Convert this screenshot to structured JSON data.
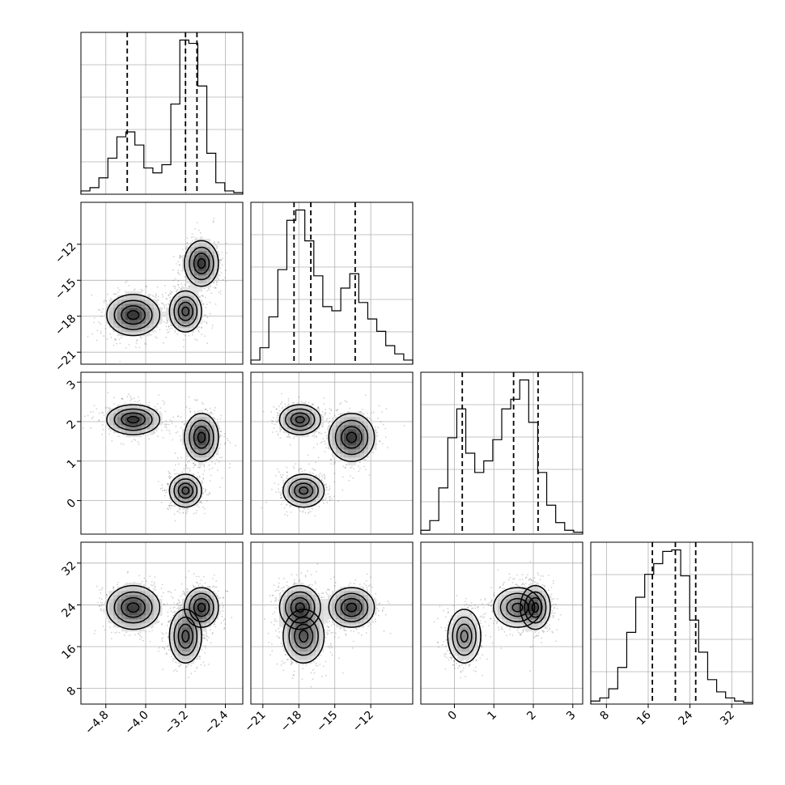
{
  "chart_data": {
    "type": "corner",
    "grid": true,
    "parameters": [
      {
        "range": [
          -5.3,
          -2.05
        ],
        "ticks": [
          -4.8,
          -4.0,
          -3.2,
          -2.4
        ],
        "tick_labels": [
          "−4.8",
          "−4.0",
          "−3.2",
          "−2.4"
        ],
        "quantiles": [
          -4.37,
          -3.2,
          -2.97
        ],
        "modes": [
          {
            "mu": -4.25,
            "sd": 0.28,
            "w": 0.35
          },
          {
            "mu": -3.2,
            "sd": 0.17,
            "w": 0.3
          },
          {
            "mu": -2.88,
            "sd": 0.18,
            "w": 0.35
          }
        ]
      },
      {
        "range": [
          -22.0,
          -8.5
        ],
        "ticks": [
          -21,
          -18,
          -15,
          -12
        ],
        "tick_labels": [
          "−21",
          "−18",
          "−15",
          "−12"
        ],
        "quantiles": [
          -18.4,
          -17.0,
          -13.3
        ],
        "modes": [
          {
            "mu": -17.9,
            "sd": 0.9,
            "w": 0.33
          },
          {
            "mu": -17.6,
            "sd": 0.9,
            "w": 0.3
          },
          {
            "mu": -13.6,
            "sd": 1.0,
            "w": 0.37
          }
        ]
      },
      {
        "range": [
          -0.85,
          3.25
        ],
        "ticks": [
          0,
          1,
          2,
          3
        ],
        "tick_labels": [
          "0",
          "1",
          "2",
          "3"
        ],
        "quantiles": [
          0.2,
          1.5,
          2.12
        ],
        "modes": [
          {
            "mu": 2.05,
            "sd": 0.2,
            "w": 0.35
          },
          {
            "mu": 0.25,
            "sd": 0.22,
            "w": 0.3
          },
          {
            "mu": 1.6,
            "sd": 0.32,
            "w": 0.35
          }
        ]
      },
      {
        "range": [
          5,
          36
        ],
        "ticks": [
          8,
          16,
          24,
          32
        ],
        "tick_labels": [
          "8",
          "16",
          "24",
          "32"
        ],
        "quantiles": [
          16.8,
          21.2,
          25.1
        ],
        "modes": [
          {
            "mu": 23.5,
            "sd": 2.2,
            "w": 0.35
          },
          {
            "mu": 18.0,
            "sd": 2.7,
            "w": 0.3
          },
          {
            "mu": 23.5,
            "sd": 2.0,
            "w": 0.35
          }
        ]
      }
    ],
    "histograms": [
      [
        2,
        4,
        10,
        22,
        35,
        38,
        30,
        16,
        13,
        18,
        55,
        94,
        92,
        66,
        25,
        7,
        2,
        1
      ],
      [
        2,
        8,
        23,
        46,
        70,
        75,
        60,
        43,
        28,
        26,
        37,
        44,
        30,
        22,
        16,
        9,
        5,
        2
      ],
      [
        2,
        7,
        24,
        50,
        65,
        42,
        32,
        38,
        49,
        65,
        70,
        80,
        58,
        32,
        15,
        6,
        2,
        1
      ],
      [
        2,
        4,
        10,
        24,
        47,
        70,
        85,
        92,
        100,
        101,
        84,
        55,
        34,
        16,
        8,
        4,
        2,
        1
      ]
    ]
  }
}
